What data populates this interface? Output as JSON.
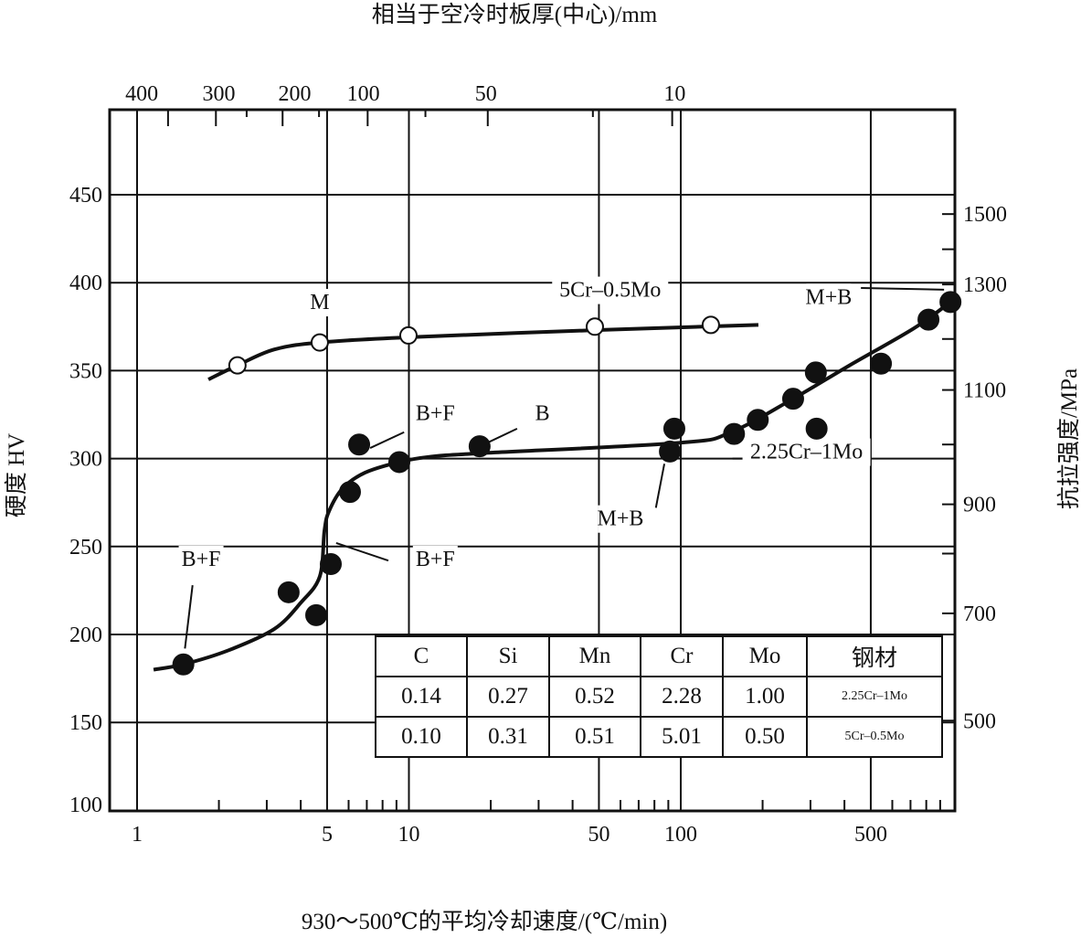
{
  "chart_data": {
    "type": "scatter",
    "title": "",
    "top_axis_label": "相当于空冷时板厚(中心)/mm",
    "xlabel": "930～500℃的平均冷却速度/(℃/min)",
    "ylabel": "硬度 HV",
    "y2label": "抗拉强度/MPa",
    "xscale": "log",
    "xlim": [
      0.9,
      1100
    ],
    "ylim": [
      100,
      490
    ],
    "grid": true,
    "x_ticks": [
      {
        "label": "1",
        "value": 1
      },
      {
        "label": "5",
        "value": 5
      },
      {
        "label": "10",
        "value": 10
      },
      {
        "label": "50",
        "value": 50
      },
      {
        "label": "100",
        "value": 100
      },
      {
        "label": "500",
        "value": 500
      }
    ],
    "x_gridlines": [
      1,
      5,
      10,
      50,
      100,
      500
    ],
    "x_minor_ticks": [
      2,
      3,
      4,
      6,
      7,
      8,
      9,
      20,
      30,
      40,
      60,
      70,
      80,
      90,
      200,
      300,
      400,
      600,
      700,
      800,
      900
    ],
    "y_ticks": [
      {
        "label": "450",
        "value": 450
      },
      {
        "label": "400",
        "value": 400
      },
      {
        "label": "350",
        "value": 350
      },
      {
        "label": "300",
        "value": 300
      },
      {
        "label": "250",
        "value": 250
      },
      {
        "label": "200",
        "value": 200
      },
      {
        "label": "150",
        "value": 150
      },
      {
        "label": "100",
        "value": 100
      }
    ],
    "y_gridlines": [
      450,
      400,
      350,
      300,
      250,
      200,
      150
    ],
    "y2_ticks": [
      {
        "label": "1500",
        "hv_equivalent": 439
      },
      {
        "label": "",
        "hv_equivalent": 419
      },
      {
        "label": "1300",
        "hv_equivalent": 399
      },
      {
        "label": "",
        "hv_equivalent": 368
      },
      {
        "label": "1100",
        "hv_equivalent": 339
      },
      {
        "label": "",
        "hv_equivalent": 308
      },
      {
        "label": "900",
        "hv_equivalent": 274
      },
      {
        "label": "",
        "hv_equivalent": 246
      },
      {
        "label": "700",
        "hv_equivalent": 212
      },
      {
        "label": "500",
        "hv_equivalent": 151
      }
    ],
    "top_ticks": [
      {
        "label": "400",
        "rate": 1.04
      },
      {
        "label": "300",
        "rate": 2.0
      },
      {
        "label": "200",
        "rate": 3.8
      },
      {
        "label": "100",
        "rate": 6.8
      },
      {
        "label": "50",
        "rate": 19.2
      },
      {
        "label": "10",
        "rate": 95
      }
    ],
    "top_minor_ticks": [
      1.3,
      1.95,
      2.53,
      3.43,
      4.67,
      7.05,
      11.5,
      19.5,
      47.5,
      93
    ],
    "series": [
      {
        "name": "5Cr–0.5Mo",
        "marker": "open-circle",
        "points": [
          [
            2.34,
            353
          ],
          [
            4.7,
            366
          ],
          [
            9.96,
            370
          ],
          [
            48.3,
            375
          ],
          [
            129,
            376
          ]
        ],
        "curve": [
          [
            1.83,
            345
          ],
          [
            2.34,
            353
          ],
          [
            3.19,
            362
          ],
          [
            4.7,
            366
          ],
          [
            10,
            369
          ],
          [
            48,
            373
          ],
          [
            193,
            376
          ]
        ]
      },
      {
        "name": "2.25Cr–1Mo",
        "marker": "filled-circle",
        "points": [
          [
            1.48,
            183
          ],
          [
            3.61,
            224
          ],
          [
            4.56,
            211
          ],
          [
            5.16,
            240
          ],
          [
            6.07,
            281
          ],
          [
            6.56,
            308
          ],
          [
            9.22,
            298
          ],
          [
            18.2,
            307
          ],
          [
            91.2,
            304
          ],
          [
            94.7,
            317
          ],
          [
            157,
            314
          ],
          [
            192,
            322
          ],
          [
            259,
            334
          ],
          [
            314,
            349
          ],
          [
            316,
            317
          ],
          [
            545,
            354
          ],
          [
            815,
            379
          ],
          [
            982,
            389
          ]
        ],
        "curve": [
          [
            1.15,
            180
          ],
          [
            1.48,
            183
          ],
          [
            2.17,
            191
          ],
          [
            3.19,
            203
          ],
          [
            4.0,
            218
          ],
          [
            4.7,
            233
          ],
          [
            4.89,
            259
          ],
          [
            5.08,
            270
          ],
          [
            5.7,
            283
          ],
          [
            6.9,
            292
          ],
          [
            9.2,
            298
          ],
          [
            11.9,
            301
          ],
          [
            18.2,
            303
          ],
          [
            100,
            309
          ],
          [
            153,
            315
          ],
          [
            259,
            334
          ],
          [
            418,
            353
          ],
          [
            720,
            374
          ],
          [
            982,
            389
          ]
        ]
      }
    ],
    "annotations": [
      {
        "text": "M",
        "at": [
          4.7,
          385
        ],
        "leader": null
      },
      {
        "text": "5Cr–0.5Mo",
        "at": [
          55,
          392
        ],
        "leader": null
      },
      {
        "text": "M+B",
        "at": [
          350,
          388
        ],
        "leader": [
          [
            460,
            397
          ],
          [
            930,
            396
          ]
        ]
      },
      {
        "text": "B+F",
        "at": [
          12.5,
          322
        ],
        "leader": [
          [
            9.6,
            315
          ],
          [
            7.2,
            306
          ]
        ]
      },
      {
        "text": "B",
        "at": [
          31,
          322
        ],
        "leader": [
          [
            25,
            317
          ],
          [
            17.7,
            306
          ]
        ]
      },
      {
        "text": "2.25Cr–1Mo",
        "at": [
          290,
          300
        ],
        "leader": [
          [
            155,
            300
          ],
          [
            170,
            300
          ]
        ]
      },
      {
        "text": "M+B",
        "at": [
          60,
          262
        ],
        "leader": [
          [
            81,
            272
          ],
          [
            87,
            297
          ]
        ]
      },
      {
        "text": "B+F",
        "at": [
          1.72,
          239
        ],
        "leader": [
          [
            1.6,
            228
          ],
          [
            1.5,
            192
          ]
        ]
      },
      {
        "text": "B+F",
        "at": [
          12.5,
          239
        ],
        "leader": [
          [
            8.4,
            242
          ],
          [
            5.4,
            252
          ]
        ]
      }
    ]
  },
  "composition_table": {
    "headers": [
      "C",
      "Si",
      "Mn",
      "Cr",
      "Mo",
      "钢材"
    ],
    "rows": [
      [
        "0.14",
        "0.27",
        "0.52",
        "2.28",
        "1.00",
        "2.25Cr–1Mo"
      ],
      [
        "0.10",
        "0.31",
        "0.51",
        "5.01",
        "0.50",
        "5Cr–0.5Mo"
      ]
    ]
  }
}
